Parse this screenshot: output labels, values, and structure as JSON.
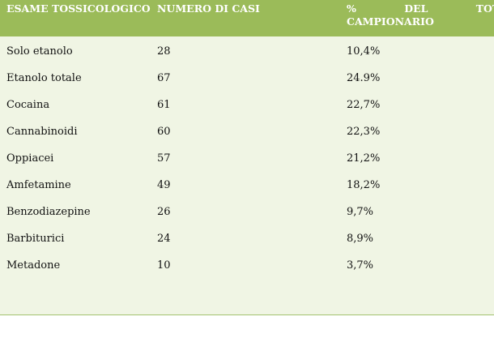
{
  "table": {
    "headers": {
      "col1": "ESAME TOSSICOLOGICO",
      "col2": "NUMERO DI CASI",
      "col3_line1": "% DEL TOTA",
      "col3_line2": "CAMPIONARIO"
    },
    "rows": [
      {
        "esame": "Solo etanolo",
        "casi": "28",
        "percentuale": "10,4%"
      },
      {
        "esame": "Etanolo totale",
        "casi": "67",
        "percentuale": "24.9%"
      },
      {
        "esame": "Cocaina",
        "casi": "61",
        "percentuale": "22,7%"
      },
      {
        "esame": "Cannabinoidi",
        "casi": "60",
        "percentuale": "22,3%"
      },
      {
        "esame": "Oppiacei",
        "casi": "57",
        "percentuale": "21,2%"
      },
      {
        "esame": "Amfetamine",
        "casi": "49",
        "percentuale": "18,2%"
      },
      {
        "esame": "Benzodiazepine",
        "casi": "26",
        "percentuale": "9,7%"
      },
      {
        "esame": "Barbiturici",
        "casi": "24",
        "percentuale": "8,9%"
      },
      {
        "esame": "Metadone",
        "casi": "10",
        "percentuale": "3,7%"
      }
    ]
  },
  "colors": {
    "header_bg": "#9bbb59",
    "body_bg": "#f0f5e4"
  }
}
